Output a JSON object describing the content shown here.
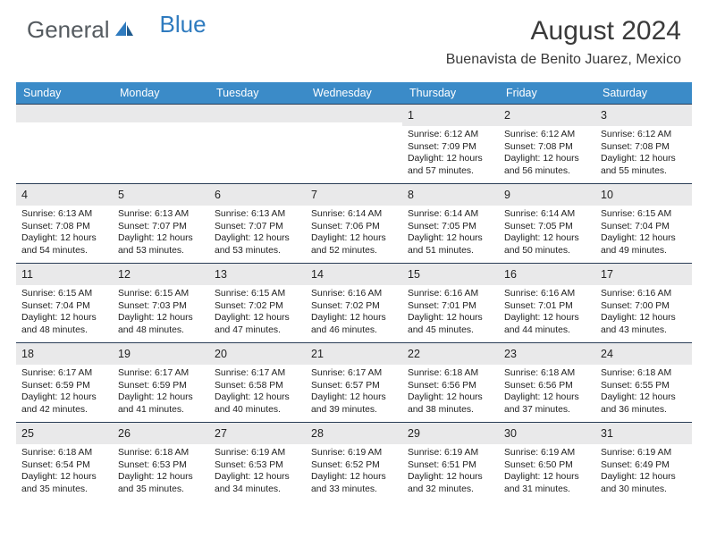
{
  "logo": {
    "text1": "General",
    "text2": "Blue"
  },
  "title": "August 2024",
  "location": "Buenavista de Benito Juarez, Mexico",
  "colors": {
    "header_bg": "#3b8bc8",
    "header_text": "#ffffff",
    "daynum_bg": "#e9e9ea",
    "week_border": "#2a3d57",
    "logo_gray": "#555b60",
    "logo_blue": "#2f7bbf"
  },
  "weekdays": [
    "Sunday",
    "Monday",
    "Tuesday",
    "Wednesday",
    "Thursday",
    "Friday",
    "Saturday"
  ],
  "days": [
    {
      "n": "",
      "sunrise": "",
      "sunset": "",
      "dl1": "",
      "dl2": ""
    },
    {
      "n": "",
      "sunrise": "",
      "sunset": "",
      "dl1": "",
      "dl2": ""
    },
    {
      "n": "",
      "sunrise": "",
      "sunset": "",
      "dl1": "",
      "dl2": ""
    },
    {
      "n": "",
      "sunrise": "",
      "sunset": "",
      "dl1": "",
      "dl2": ""
    },
    {
      "n": "1",
      "sunrise": "Sunrise: 6:12 AM",
      "sunset": "Sunset: 7:09 PM",
      "dl1": "Daylight: 12 hours",
      "dl2": "and 57 minutes."
    },
    {
      "n": "2",
      "sunrise": "Sunrise: 6:12 AM",
      "sunset": "Sunset: 7:08 PM",
      "dl1": "Daylight: 12 hours",
      "dl2": "and 56 minutes."
    },
    {
      "n": "3",
      "sunrise": "Sunrise: 6:12 AM",
      "sunset": "Sunset: 7:08 PM",
      "dl1": "Daylight: 12 hours",
      "dl2": "and 55 minutes."
    },
    {
      "n": "4",
      "sunrise": "Sunrise: 6:13 AM",
      "sunset": "Sunset: 7:08 PM",
      "dl1": "Daylight: 12 hours",
      "dl2": "and 54 minutes."
    },
    {
      "n": "5",
      "sunrise": "Sunrise: 6:13 AM",
      "sunset": "Sunset: 7:07 PM",
      "dl1": "Daylight: 12 hours",
      "dl2": "and 53 minutes."
    },
    {
      "n": "6",
      "sunrise": "Sunrise: 6:13 AM",
      "sunset": "Sunset: 7:07 PM",
      "dl1": "Daylight: 12 hours",
      "dl2": "and 53 minutes."
    },
    {
      "n": "7",
      "sunrise": "Sunrise: 6:14 AM",
      "sunset": "Sunset: 7:06 PM",
      "dl1": "Daylight: 12 hours",
      "dl2": "and 52 minutes."
    },
    {
      "n": "8",
      "sunrise": "Sunrise: 6:14 AM",
      "sunset": "Sunset: 7:05 PM",
      "dl1": "Daylight: 12 hours",
      "dl2": "and 51 minutes."
    },
    {
      "n": "9",
      "sunrise": "Sunrise: 6:14 AM",
      "sunset": "Sunset: 7:05 PM",
      "dl1": "Daylight: 12 hours",
      "dl2": "and 50 minutes."
    },
    {
      "n": "10",
      "sunrise": "Sunrise: 6:15 AM",
      "sunset": "Sunset: 7:04 PM",
      "dl1": "Daylight: 12 hours",
      "dl2": "and 49 minutes."
    },
    {
      "n": "11",
      "sunrise": "Sunrise: 6:15 AM",
      "sunset": "Sunset: 7:04 PM",
      "dl1": "Daylight: 12 hours",
      "dl2": "and 48 minutes."
    },
    {
      "n": "12",
      "sunrise": "Sunrise: 6:15 AM",
      "sunset": "Sunset: 7:03 PM",
      "dl1": "Daylight: 12 hours",
      "dl2": "and 48 minutes."
    },
    {
      "n": "13",
      "sunrise": "Sunrise: 6:15 AM",
      "sunset": "Sunset: 7:02 PM",
      "dl1": "Daylight: 12 hours",
      "dl2": "and 47 minutes."
    },
    {
      "n": "14",
      "sunrise": "Sunrise: 6:16 AM",
      "sunset": "Sunset: 7:02 PM",
      "dl1": "Daylight: 12 hours",
      "dl2": "and 46 minutes."
    },
    {
      "n": "15",
      "sunrise": "Sunrise: 6:16 AM",
      "sunset": "Sunset: 7:01 PM",
      "dl1": "Daylight: 12 hours",
      "dl2": "and 45 minutes."
    },
    {
      "n": "16",
      "sunrise": "Sunrise: 6:16 AM",
      "sunset": "Sunset: 7:01 PM",
      "dl1": "Daylight: 12 hours",
      "dl2": "and 44 minutes."
    },
    {
      "n": "17",
      "sunrise": "Sunrise: 6:16 AM",
      "sunset": "Sunset: 7:00 PM",
      "dl1": "Daylight: 12 hours",
      "dl2": "and 43 minutes."
    },
    {
      "n": "18",
      "sunrise": "Sunrise: 6:17 AM",
      "sunset": "Sunset: 6:59 PM",
      "dl1": "Daylight: 12 hours",
      "dl2": "and 42 minutes."
    },
    {
      "n": "19",
      "sunrise": "Sunrise: 6:17 AM",
      "sunset": "Sunset: 6:59 PM",
      "dl1": "Daylight: 12 hours",
      "dl2": "and 41 minutes."
    },
    {
      "n": "20",
      "sunrise": "Sunrise: 6:17 AM",
      "sunset": "Sunset: 6:58 PM",
      "dl1": "Daylight: 12 hours",
      "dl2": "and 40 minutes."
    },
    {
      "n": "21",
      "sunrise": "Sunrise: 6:17 AM",
      "sunset": "Sunset: 6:57 PM",
      "dl1": "Daylight: 12 hours",
      "dl2": "and 39 minutes."
    },
    {
      "n": "22",
      "sunrise": "Sunrise: 6:18 AM",
      "sunset": "Sunset: 6:56 PM",
      "dl1": "Daylight: 12 hours",
      "dl2": "and 38 minutes."
    },
    {
      "n": "23",
      "sunrise": "Sunrise: 6:18 AM",
      "sunset": "Sunset: 6:56 PM",
      "dl1": "Daylight: 12 hours",
      "dl2": "and 37 minutes."
    },
    {
      "n": "24",
      "sunrise": "Sunrise: 6:18 AM",
      "sunset": "Sunset: 6:55 PM",
      "dl1": "Daylight: 12 hours",
      "dl2": "and 36 minutes."
    },
    {
      "n": "25",
      "sunrise": "Sunrise: 6:18 AM",
      "sunset": "Sunset: 6:54 PM",
      "dl1": "Daylight: 12 hours",
      "dl2": "and 35 minutes."
    },
    {
      "n": "26",
      "sunrise": "Sunrise: 6:18 AM",
      "sunset": "Sunset: 6:53 PM",
      "dl1": "Daylight: 12 hours",
      "dl2": "and 35 minutes."
    },
    {
      "n": "27",
      "sunrise": "Sunrise: 6:19 AM",
      "sunset": "Sunset: 6:53 PM",
      "dl1": "Daylight: 12 hours",
      "dl2": "and 34 minutes."
    },
    {
      "n": "28",
      "sunrise": "Sunrise: 6:19 AM",
      "sunset": "Sunset: 6:52 PM",
      "dl1": "Daylight: 12 hours",
      "dl2": "and 33 minutes."
    },
    {
      "n": "29",
      "sunrise": "Sunrise: 6:19 AM",
      "sunset": "Sunset: 6:51 PM",
      "dl1": "Daylight: 12 hours",
      "dl2": "and 32 minutes."
    },
    {
      "n": "30",
      "sunrise": "Sunrise: 6:19 AM",
      "sunset": "Sunset: 6:50 PM",
      "dl1": "Daylight: 12 hours",
      "dl2": "and 31 minutes."
    },
    {
      "n": "31",
      "sunrise": "Sunrise: 6:19 AM",
      "sunset": "Sunset: 6:49 PM",
      "dl1": "Daylight: 12 hours",
      "dl2": "and 30 minutes."
    }
  ]
}
